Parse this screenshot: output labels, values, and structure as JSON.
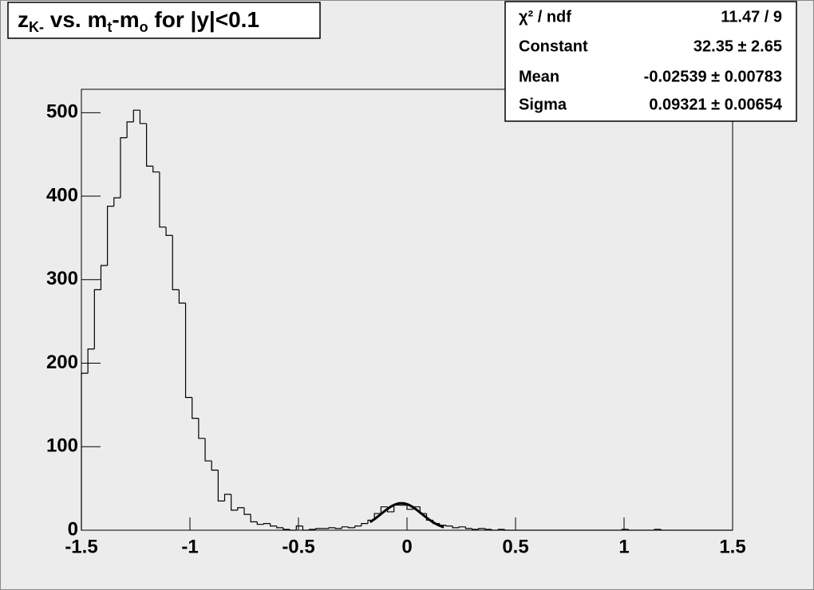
{
  "chart_data": {
    "type": "histogram",
    "title": [
      "z",
      "K-",
      " vs. m",
      "t",
      "-m",
      "o",
      " for |y|<0.1"
    ],
    "bins": [
      -1.5,
      -1.47,
      -1.44,
      -1.41,
      -1.38,
      -1.35,
      -1.32,
      -1.29,
      -1.26,
      -1.23,
      -1.2,
      -1.17,
      -1.14,
      -1.11,
      -1.08,
      -1.05,
      -1.02,
      -0.99,
      -0.96,
      -0.93,
      -0.9,
      -0.87,
      -0.84,
      -0.81,
      -0.78,
      -0.75,
      -0.72,
      -0.69,
      -0.66,
      -0.63,
      -0.6,
      -0.57,
      -0.54,
      -0.51,
      -0.48,
      -0.45,
      -0.42,
      -0.39,
      -0.36,
      -0.33,
      -0.3,
      -0.27,
      -0.24,
      -0.21,
      -0.18,
      -0.15,
      -0.12,
      -0.09,
      -0.06,
      -0.03,
      0,
      0.03,
      0.06,
      0.09,
      0.12,
      0.15,
      0.18,
      0.21,
      0.24,
      0.27,
      0.3,
      0.33,
      0.36,
      0.39,
      0.42,
      0.45,
      0.48,
      0.51,
      0.54,
      0.57,
      0.6,
      0.63,
      0.66,
      0.69,
      0.72,
      0.75,
      0.78,
      0.81,
      0.84,
      0.87,
      0.9,
      0.93,
      0.96,
      0.99,
      1.02,
      1.05,
      1.08,
      1.11,
      1.14,
      1.17,
      1.2,
      1.23,
      1.26,
      1.29,
      1.32,
      1.35,
      1.38,
      1.41,
      1.44,
      1.47,
      1.5
    ],
    "values": [
      188,
      217,
      288,
      317,
      388,
      398,
      470,
      489,
      503,
      487,
      436,
      429,
      363,
      353,
      288,
      272,
      159,
      134,
      110,
      83,
      72,
      35,
      43,
      24,
      27,
      19,
      10,
      7,
      8,
      5,
      3,
      1,
      0,
      5,
      0,
      1,
      2,
      2,
      3,
      2,
      4,
      3,
      5,
      8,
      12,
      20,
      28,
      22,
      30,
      30,
      25,
      28,
      20,
      12,
      8,
      6,
      5,
      3,
      4,
      2,
      1,
      2,
      1,
      0,
      1,
      0,
      0,
      0,
      0,
      0,
      0,
      0,
      0,
      0,
      0,
      0,
      0,
      0,
      0,
      0,
      0,
      0,
      0,
      1,
      0,
      0,
      0,
      0,
      1,
      0,
      0,
      0,
      0,
      0,
      0,
      0,
      0,
      0,
      0,
      0
    ],
    "color": "#000000",
    "fit": {
      "constant": 32.35,
      "mean": -0.02539,
      "sigma": 0.09321,
      "xlim": [
        -0.17,
        0.17
      ],
      "color": "#000000"
    },
    "stats": [
      {
        "label": "χ² / ndf",
        "value": "11.47 / 9"
      },
      {
        "label": "Constant",
        "value": "32.35 ± 2.65"
      },
      {
        "label": "Mean",
        "value": "-0.02539 ± 0.00783"
      },
      {
        "label": "Sigma",
        "value": "0.09321 ± 0.00654"
      }
    ],
    "xlim": [
      -1.5,
      1.5
    ],
    "xticks": [
      -1.5,
      -1,
      -0.5,
      0,
      0.5,
      1,
      1.5
    ],
    "ylim": [
      0,
      528
    ],
    "yticks": [
      0,
      100,
      200,
      300,
      400,
      500
    ]
  }
}
